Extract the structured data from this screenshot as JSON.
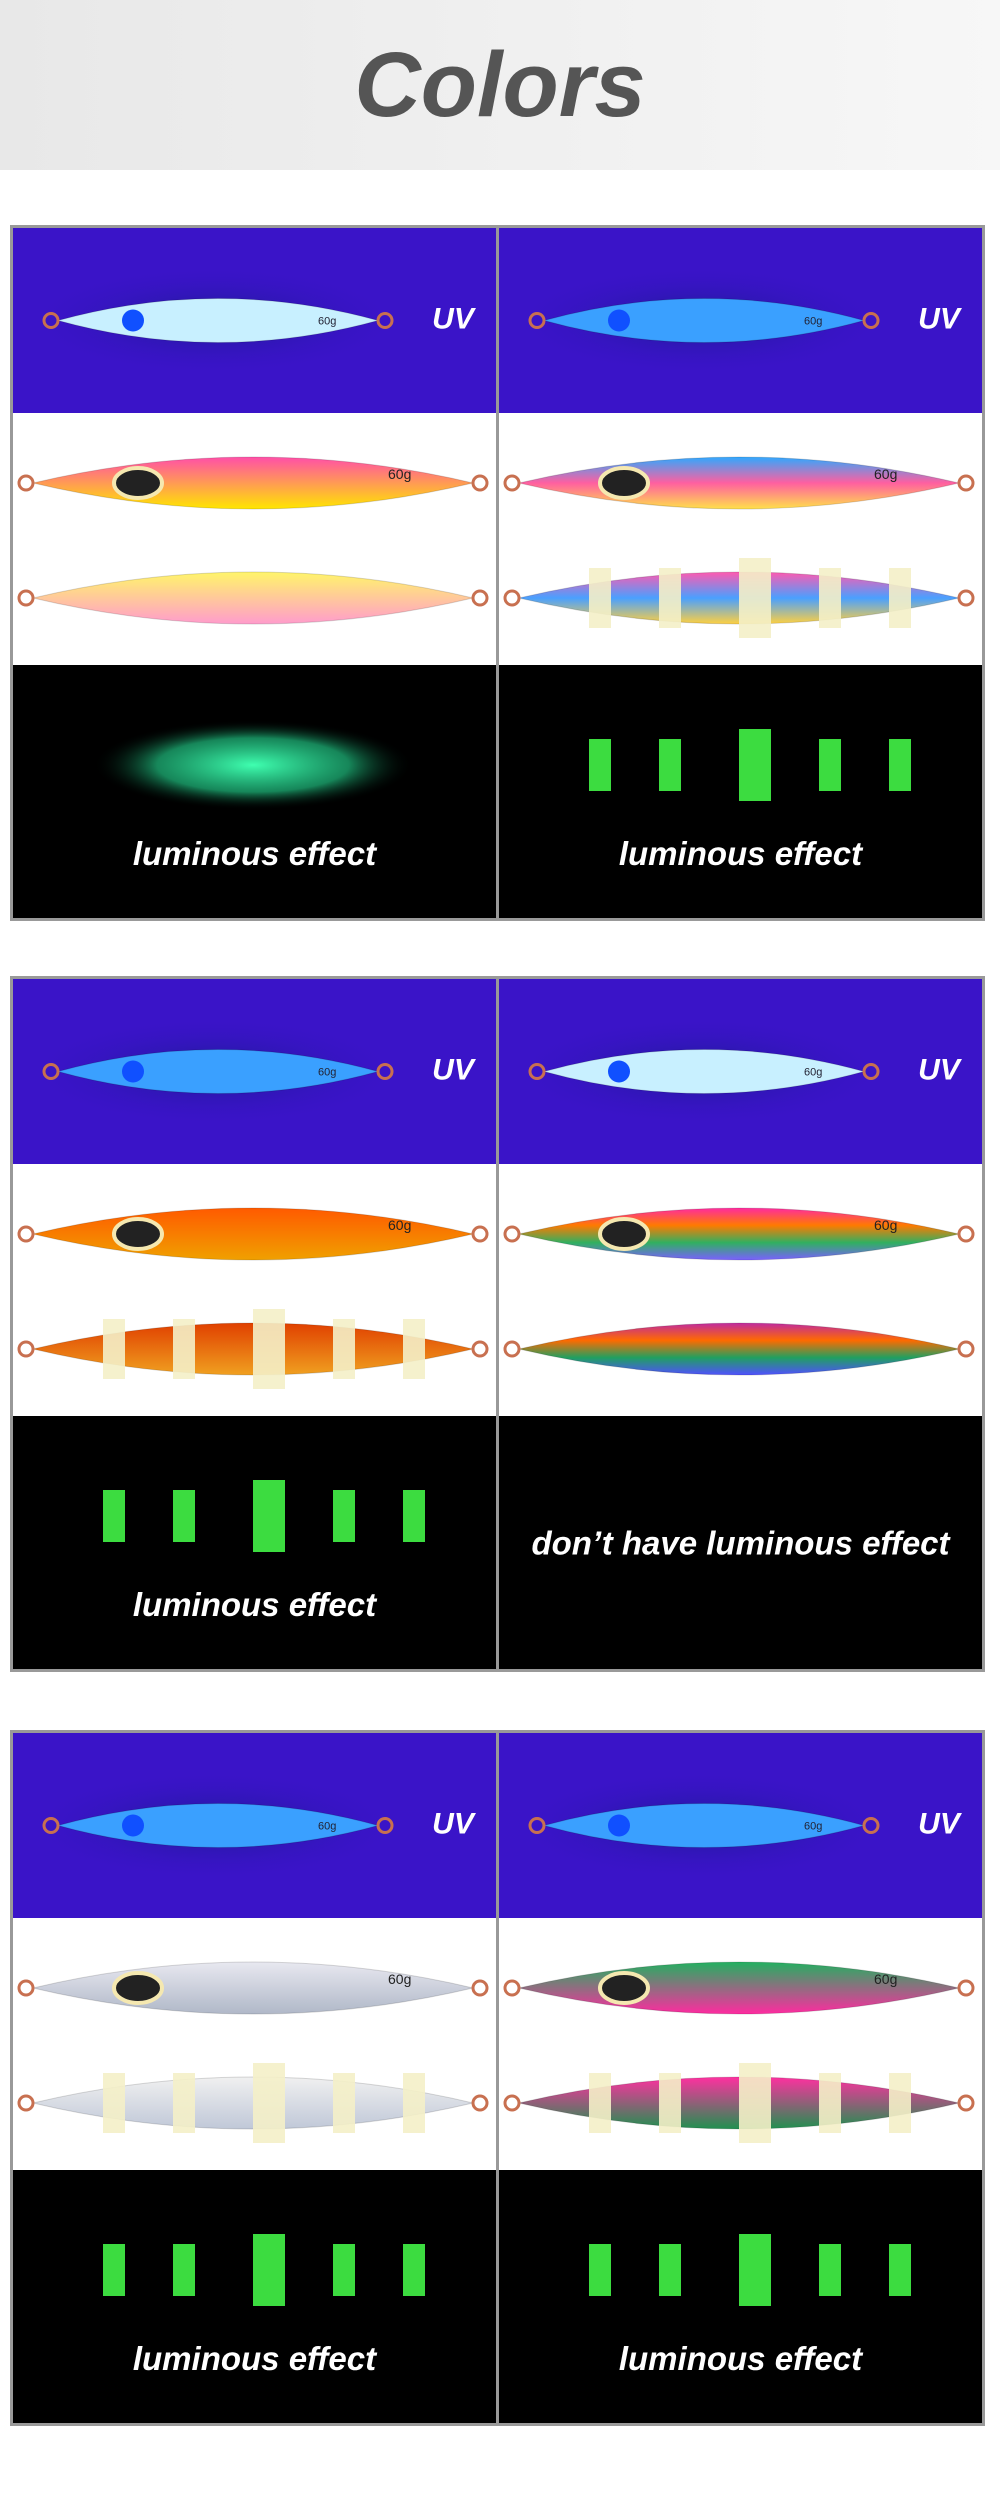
{
  "header": {
    "title": "Colors"
  },
  "groups": [
    {
      "panels": [
        {
          "uv_label": "UV",
          "weight": "60g",
          "caption": "luminous effect"
        },
        {
          "uv_label": "UV",
          "weight": "60g",
          "caption": "luminous effect"
        }
      ]
    },
    {
      "panels": [
        {
          "uv_label": "UV",
          "weight": "60g",
          "caption": "luminous effect"
        },
        {
          "uv_label": "UV",
          "weight": "60g",
          "caption": "don’t have luminous effect"
        }
      ]
    },
    {
      "panels": [
        {
          "uv_label": "UV",
          "weight": "60g",
          "caption": "luminous effect"
        },
        {
          "uv_label": "UV",
          "weight": "60g",
          "caption": "luminous effect"
        }
      ]
    }
  ]
}
